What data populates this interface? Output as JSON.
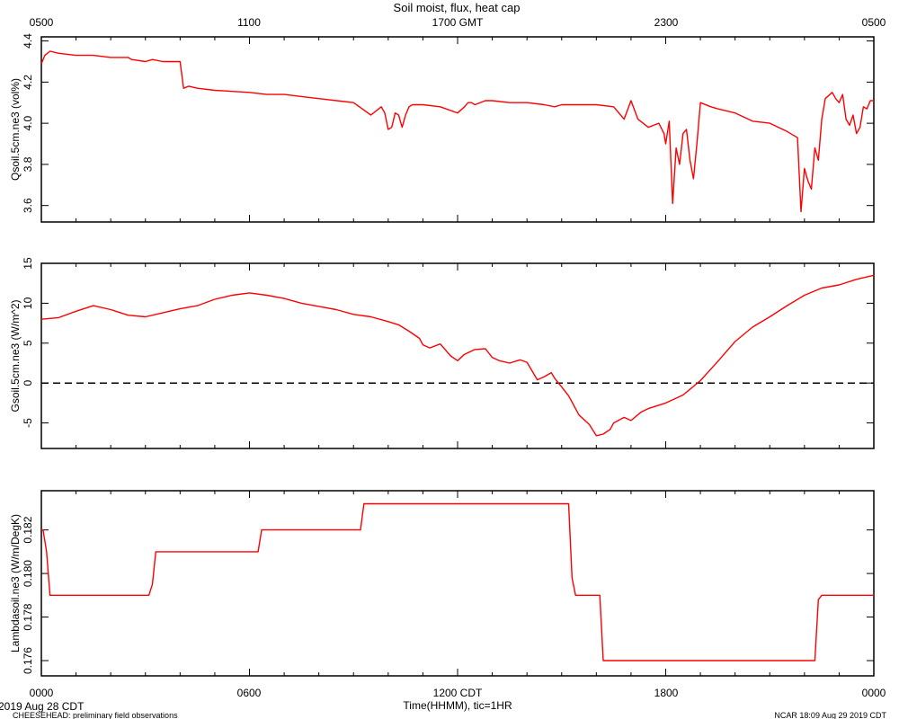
{
  "title": "Soil moist, flux, heat cap",
  "top_axis": {
    "ticks": [
      "0500",
      "1100",
      "1700 GMT",
      "2300",
      "0500"
    ]
  },
  "bottom_axis": {
    "ticks": [
      "0000",
      "0600",
      "1200 CDT",
      "1800",
      "0000"
    ],
    "label": "Time(HHMM), tic=1HR"
  },
  "footer": {
    "date": "2019 Aug 28 CDT",
    "project": "CHEESEHEAD: preliminary field observations",
    "stamp": "NCAR 18:09 Aug 29 2019 CDT"
  },
  "colors": {
    "series": "#ff0000",
    "axes": "#000000",
    "background": "#ffffff"
  },
  "chart_data": [
    {
      "type": "line",
      "ylabel": "Qsoil.5cm.ne3 (vol%)",
      "xlim": [
        0,
        24
      ],
      "ylim": [
        3.52,
        4.42
      ],
      "yticks": [
        3.6,
        3.8,
        4.0,
        4.2,
        4.4
      ],
      "ytick_labels": [
        "3.6",
        "3.8",
        "4.0",
        "4.2",
        "4.4"
      ],
      "series": [
        {
          "x": [
            0,
            0.1,
            0.25,
            0.5,
            1,
            1.5,
            2,
            2.5,
            2.6,
            3,
            3.2,
            3.5,
            4,
            4.1,
            4.25,
            4.5,
            5,
            6,
            6.5,
            7,
            7.5,
            8,
            9,
            9.5,
            9.8,
            9.9,
            10,
            10.1,
            10.2,
            10.3,
            10.4,
            10.5,
            10.6,
            10.7,
            10.8,
            11,
            11.5,
            12,
            12.2,
            12.3,
            12.4,
            12.5,
            12.8,
            13,
            13.5,
            14,
            14.5,
            14.8,
            15,
            15.5,
            16,
            16.5,
            16.8,
            17,
            17.2,
            17.5,
            17.8,
            17.95,
            18,
            18.1,
            18.2,
            18.3,
            18.4,
            18.5,
            18.6,
            18.7,
            18.8,
            18.9,
            19,
            19.3,
            19.5,
            20,
            20.5,
            21,
            21.5,
            21.8,
            21.9,
            22,
            22.1,
            22.2,
            22.3,
            22.4,
            22.5,
            22.6,
            22.8,
            22.9,
            23,
            23.1,
            23.2,
            23.3,
            23.4,
            23.5,
            23.6,
            23.7,
            23.8,
            23.9,
            24
          ],
          "y": [
            4.29,
            4.33,
            4.35,
            4.34,
            4.33,
            4.33,
            4.32,
            4.32,
            4.31,
            4.3,
            4.31,
            4.3,
            4.3,
            4.17,
            4.18,
            4.17,
            4.16,
            4.15,
            4.14,
            4.14,
            4.13,
            4.12,
            4.1,
            4.04,
            4.08,
            4.05,
            3.97,
            3.98,
            4.05,
            4.04,
            3.98,
            4.04,
            4.08,
            4.09,
            4.09,
            4.09,
            4.08,
            4.05,
            4.08,
            4.1,
            4.1,
            4.09,
            4.11,
            4.11,
            4.1,
            4.1,
            4.09,
            4.08,
            4.09,
            4.09,
            4.09,
            4.08,
            4.02,
            4.11,
            4.02,
            3.98,
            4.0,
            3.95,
            3.9,
            4.01,
            3.61,
            3.88,
            3.8,
            3.95,
            3.97,
            3.82,
            3.73,
            3.9,
            4.1,
            4.08,
            4.07,
            4.05,
            4.01,
            4.0,
            3.96,
            3.93,
            3.57,
            3.78,
            3.72,
            3.68,
            3.88,
            3.82,
            4.02,
            4.12,
            4.15,
            4.12,
            4.1,
            4.14,
            4.02,
            3.99,
            4.04,
            3.95,
            3.98,
            4.08,
            4.07,
            4.11,
            4.11
          ]
        }
      ]
    },
    {
      "type": "line",
      "ylabel": "Gsoil.5cm.ne3 (W/m^2)",
      "xlim": [
        0,
        24
      ],
      "ylim": [
        -8.2,
        15
      ],
      "yticks": [
        -5,
        0,
        5,
        10,
        15
      ],
      "ytick_labels": [
        "-5",
        "0",
        "5",
        "10",
        "15"
      ],
      "reference_line": {
        "y": 0,
        "style": "dashed"
      },
      "series": [
        {
          "x": [
            0,
            0.5,
            1,
            1.5,
            2,
            2.5,
            3,
            3.5,
            4,
            4.5,
            5,
            5.5,
            6,
            6.5,
            7,
            7.5,
            8,
            8.5,
            9,
            9.5,
            10,
            10.3,
            10.6,
            10.9,
            11,
            11.2,
            11.5,
            11.8,
            12,
            12.2,
            12.5,
            12.8,
            13,
            13.2,
            13.5,
            13.8,
            14,
            14.3,
            14.5,
            14.7,
            14.8,
            15,
            15.2,
            15.5,
            15.8,
            16,
            16.2,
            16.4,
            16.5,
            16.8,
            17,
            17.3,
            17.5,
            18,
            18.5,
            19,
            19.5,
            20,
            20.5,
            21,
            21.5,
            22,
            22.5,
            23,
            23.5,
            24
          ],
          "y": [
            8,
            8.2,
            9,
            9.7,
            9.2,
            8.5,
            8.3,
            8.8,
            9.3,
            9.7,
            10.5,
            11,
            11.3,
            11,
            10.6,
            10,
            9.6,
            9.2,
            8.6,
            8.3,
            7.7,
            7.3,
            6.5,
            5.6,
            4.8,
            4.4,
            4.9,
            3.4,
            2.8,
            3.6,
            4.2,
            4.3,
            3.2,
            2.8,
            2.5,
            2.9,
            2.6,
            0.4,
            0.8,
            1.3,
            0.6,
            -0.5,
            -1.6,
            -4,
            -5.2,
            -6.6,
            -6.4,
            -5.8,
            -5,
            -4.3,
            -4.7,
            -3.6,
            -3.2,
            -2.5,
            -1.5,
            0.3,
            2.7,
            5.2,
            7,
            8.3,
            9.7,
            11,
            11.9,
            12.3,
            13,
            13.5
          ]
        }
      ]
    },
    {
      "type": "line",
      "ylabel": "Lambdasoil.ne3 (W/m/DegK)",
      "xlim": [
        0,
        24
      ],
      "ylim": [
        0.1753,
        0.1838
      ],
      "yticks": [
        0.176,
        0.178,
        0.18,
        0.182
      ],
      "ytick_labels": [
        "0.176",
        "0.178",
        "0.180",
        "0.182"
      ],
      "series": [
        {
          "x": [
            0,
            0.05,
            0.15,
            0.25,
            3.1,
            3.2,
            3.3,
            6.25,
            6.35,
            9.2,
            9.3,
            15.2,
            15.3,
            15.4,
            16.1,
            16.2,
            22.3,
            22.4,
            22.5,
            24
          ],
          "y": [
            0.182,
            0.182,
            0.181,
            0.179,
            0.179,
            0.1795,
            0.181,
            0.181,
            0.182,
            0.182,
            0.1832,
            0.1832,
            0.1798,
            0.179,
            0.179,
            0.176,
            0.176,
            0.1788,
            0.179,
            0.179
          ]
        }
      ]
    }
  ]
}
